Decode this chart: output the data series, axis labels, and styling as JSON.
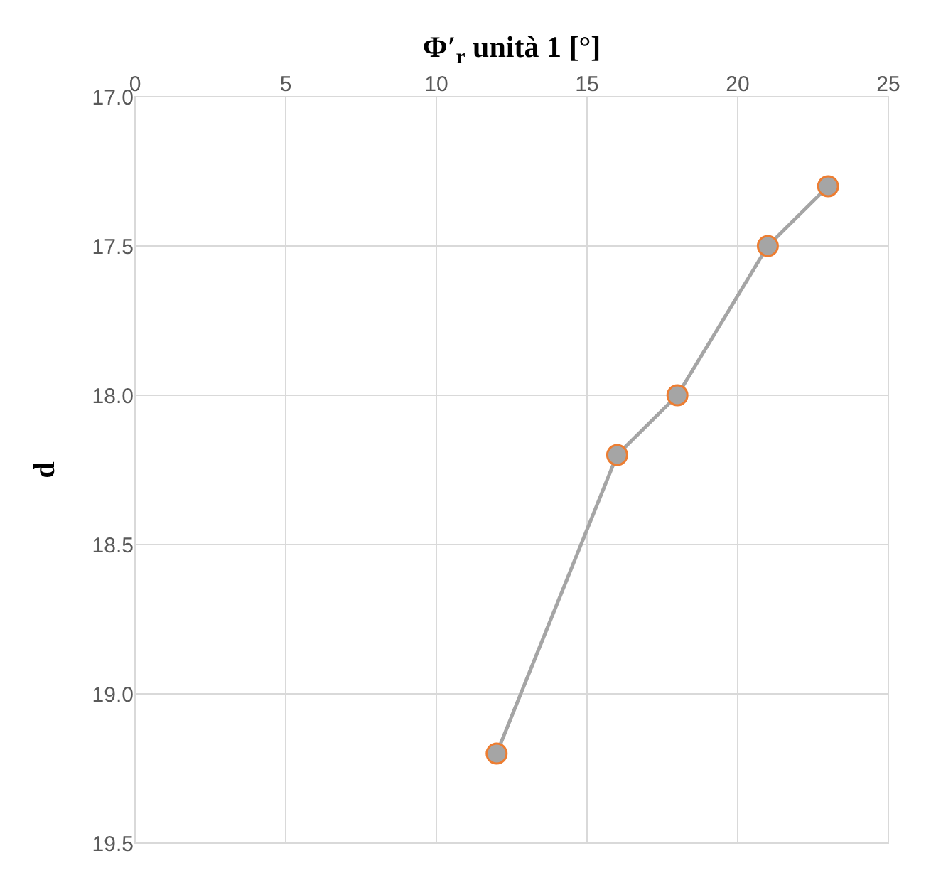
{
  "chart_data": {
    "type": "line",
    "xlabel": "Φ′$_{r}$ unità 1 [°]",
    "ylabel": "d",
    "series": [
      {
        "color": "#a5a5a5",
        "x": [
          12,
          16,
          18,
          21,
          23
        ],
        "values": [
          19.2,
          18.2,
          18.0,
          17.5,
          17.3
        ]
      }
    ],
    "xlim": [
      0,
      25
    ],
    "xticks": [
      0,
      5,
      10,
      15,
      20,
      25
    ],
    "ylim": [
      19.5,
      17.0
    ],
    "yticks": [
      {
        "value": 17.0,
        "label": "17.0"
      },
      {
        "value": 17.5,
        "label": "17.5"
      },
      {
        "value": 18.0,
        "label": "18.0"
      },
      {
        "value": 18.5,
        "label": "18.5"
      },
      {
        "value": 19.0,
        "label": "19.0"
      },
      {
        "value": 19.5,
        "label": "19.5"
      }
    ],
    "grid": true,
    "marker": "circle",
    "line_style": "solid"
  }
}
